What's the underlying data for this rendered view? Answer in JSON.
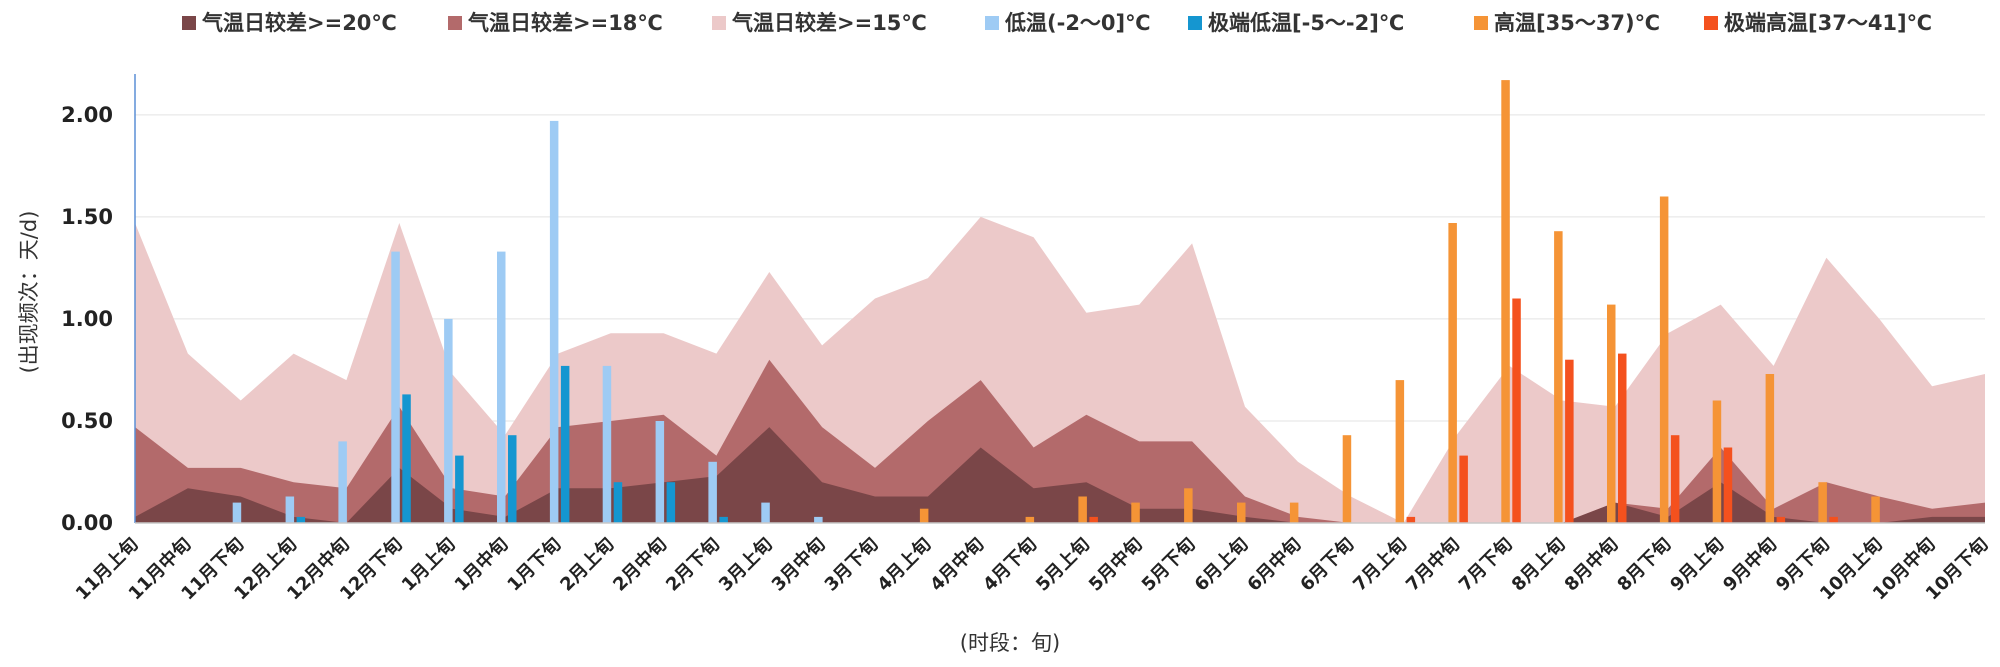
{
  "chart_data": {
    "type": "area",
    "ylabel": "(出现频次：天/d)",
    "xlabel": "(时段：旬)",
    "ylim": [
      0,
      2.2
    ],
    "yticks": [
      0,
      0.5,
      1.0,
      1.5,
      2.0
    ],
    "ytick_labels": [
      "0.00",
      "0.50",
      "1.00",
      "1.50",
      "2.00"
    ],
    "grid": true,
    "legend_position": "top",
    "categories": [
      "11月上旬",
      "11月中旬",
      "11月下旬",
      "12月上旬",
      "12月中旬",
      "12月下旬",
      "1月上旬",
      "1月中旬",
      "1月下旬",
      "2月上旬",
      "2月中旬",
      "2月下旬",
      "3月上旬",
      "3月中旬",
      "3月下旬",
      "4月上旬",
      "4月中旬",
      "4月下旬",
      "5月上旬",
      "5月中旬",
      "5月下旬",
      "6月上旬",
      "6月中旬",
      "6月下旬",
      "7月上旬",
      "7月中旬",
      "7月下旬",
      "8月上旬",
      "8月中旬",
      "8月下旬",
      "9月上旬",
      "9月中旬",
      "9月下旬",
      "10月上旬",
      "10月中旬",
      "10月下旬"
    ],
    "series": [
      {
        "name": "气温日较差>=20℃",
        "kind": "area",
        "color": "#7a4648",
        "values": [
          0.03,
          0.17,
          0.13,
          0.03,
          0,
          0.27,
          0.07,
          0.03,
          0.17,
          0.17,
          0.2,
          0.23,
          0.47,
          0.2,
          0.13,
          0.13,
          0.37,
          0.17,
          0.2,
          0.07,
          0.07,
          0.03,
          0,
          0,
          0,
          0,
          0,
          0,
          0.1,
          0.03,
          0.2,
          0.03,
          0,
          0,
          0.03,
          0.03
        ]
      },
      {
        "name": "气温日较差>=18℃",
        "kind": "area",
        "color": "#b36a6b",
        "values": [
          0.47,
          0.27,
          0.27,
          0.2,
          0.17,
          0.57,
          0.17,
          0.13,
          0.47,
          0.5,
          0.53,
          0.33,
          0.8,
          0.47,
          0.27,
          0.5,
          0.7,
          0.37,
          0.53,
          0.4,
          0.4,
          0.13,
          0.03,
          0,
          0,
          0,
          0,
          0,
          0.1,
          0.07,
          0.37,
          0.07,
          0.2,
          0.13,
          0.07,
          0.1
        ]
      },
      {
        "name": "气温日较差>=15℃",
        "kind": "area",
        "color": "#ecc9c9",
        "values": [
          1.47,
          0.83,
          0.6,
          0.83,
          0.7,
          1.47,
          0.73,
          0.43,
          0.83,
          0.93,
          0.93,
          0.83,
          1.23,
          0.87,
          1.1,
          1.2,
          1.5,
          1.4,
          1.03,
          1.07,
          1.37,
          0.57,
          0.3,
          0.13,
          0,
          0.43,
          0.77,
          0.6,
          0.57,
          0.93,
          1.07,
          0.77,
          1.3,
          1.0,
          0.67,
          0.73
        ]
      },
      {
        "name": "低温(-2～0]℃",
        "kind": "bar",
        "color": "#9ecbf4",
        "values": [
          0,
          0,
          0.1,
          0.13,
          0.4,
          1.33,
          1.0,
          1.33,
          1.97,
          0.77,
          0.5,
          0.3,
          0.1,
          0.03,
          0,
          0,
          0,
          0,
          0,
          0,
          0,
          0,
          0,
          0,
          0,
          0,
          0,
          0,
          0,
          0,
          0,
          0,
          0,
          0,
          0,
          0
        ]
      },
      {
        "name": "极端低温[-5～-2]℃",
        "kind": "bar",
        "color": "#1596d0",
        "values": [
          0,
          0,
          0,
          0.03,
          0,
          0.63,
          0.33,
          0.43,
          0.77,
          0.2,
          0.2,
          0.03,
          0,
          0,
          0,
          0,
          0,
          0,
          0,
          0,
          0,
          0,
          0,
          0,
          0,
          0,
          0,
          0,
          0,
          0,
          0,
          0,
          0,
          0,
          0,
          0
        ]
      },
      {
        "name": "高温[35～37)℃",
        "kind": "bar",
        "color": "#f59436",
        "values": [
          0,
          0,
          0,
          0,
          0,
          0,
          0,
          0,
          0,
          0,
          0,
          0,
          0,
          0,
          0,
          0.07,
          0,
          0.03,
          0.13,
          0.1,
          0.17,
          0.1,
          0.1,
          0.43,
          0.7,
          1.47,
          2.17,
          1.43,
          1.07,
          1.6,
          0.6,
          0.73,
          0.2,
          0.13,
          0,
          0
        ]
      },
      {
        "name": "极端高温[37～41]℃",
        "kind": "bar",
        "color": "#f4511e",
        "values": [
          0,
          0,
          0,
          0,
          0,
          0,
          0,
          0,
          0,
          0,
          0,
          0,
          0,
          0,
          0,
          0,
          0,
          0,
          0.03,
          0,
          0,
          0,
          0,
          0,
          0.03,
          0.33,
          1.1,
          0.8,
          0.83,
          0.43,
          0.37,
          0.03,
          0.03,
          0,
          0,
          0
        ]
      }
    ]
  }
}
